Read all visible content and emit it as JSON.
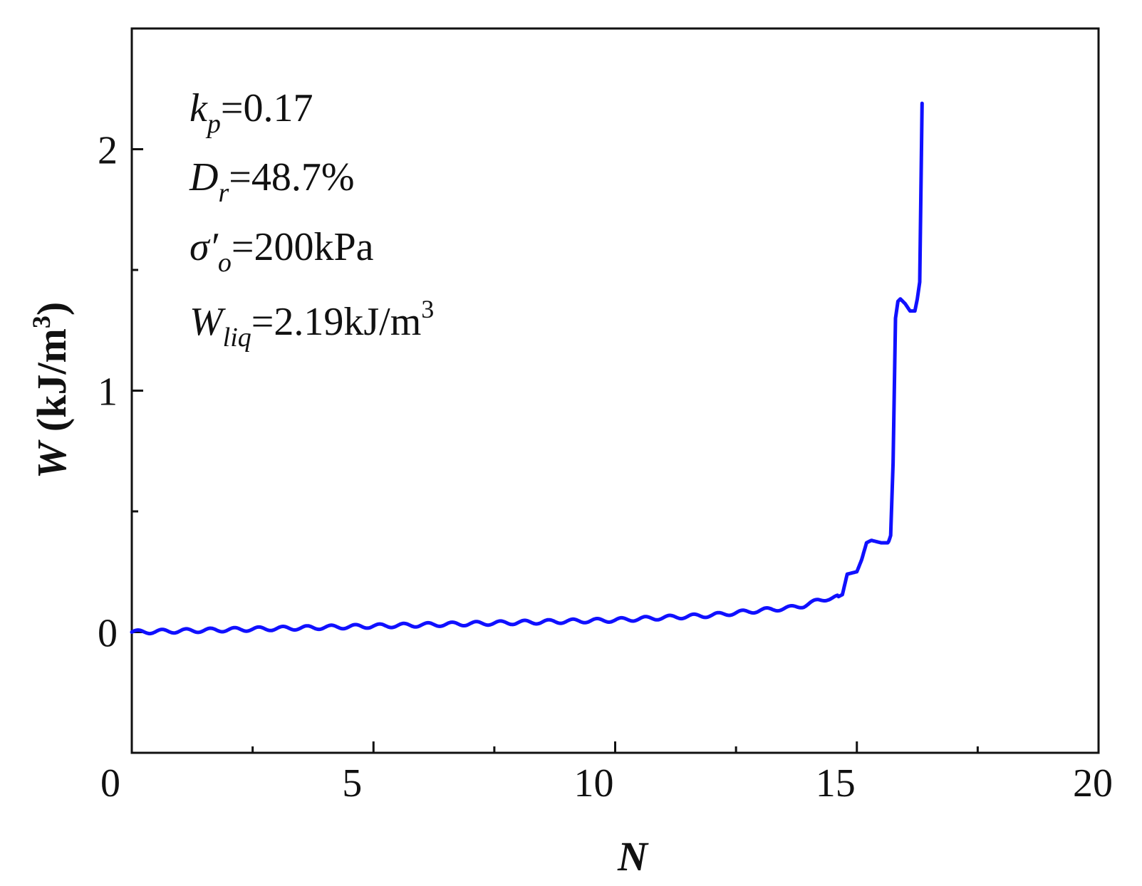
{
  "chart_data": {
    "type": "line",
    "xlabel": "N",
    "ylabel_var": "W",
    "ylabel_unit": " (kJ/m",
    "ylabel_sup": "3",
    "ylabel_close": ")",
    "xlim": [
      0,
      20
    ],
    "ylim": [
      -0.5,
      2.5
    ],
    "x_ticks": [
      0,
      5,
      10,
      15,
      20
    ],
    "x_tick_labels": [
      "0",
      "5",
      "10",
      "15",
      "20"
    ],
    "x_minor_ticks": [
      2.5,
      7.5,
      12.5,
      17.5
    ],
    "y_ticks": [
      0,
      1,
      2
    ],
    "y_tick_labels": [
      "0",
      "1",
      "2"
    ],
    "y_minor_ticks": [
      -0.5,
      0.5,
      1.5,
      2.5
    ],
    "grid": false,
    "line_color": "#1010ff",
    "annotations": [
      {
        "var": "k",
        "sub": "p",
        "text": "=0.17"
      },
      {
        "var": "D",
        "sub": "r",
        "text": "=48.7%"
      },
      {
        "var": "σ′",
        "sub": "o",
        "text": "=200kPa"
      },
      {
        "var": "W",
        "sub": "liq",
        "text": "=2.19kJ/m",
        "sup": "3"
      }
    ],
    "series": [
      {
        "x": [
          0,
          1,
          2,
          3,
          4,
          5,
          6,
          7,
          8,
          9,
          10,
          10.5,
          11,
          11.5,
          12,
          12.5,
          13,
          13.3,
          13.6,
          13.9,
          14.2,
          14.4,
          14.6,
          14.7,
          14.8,
          15.0,
          15.1,
          15.2,
          15.3,
          15.5,
          15.65,
          15.7,
          15.75,
          15.8,
          15.85,
          15.9,
          16.0,
          16.1,
          16.2,
          16.25,
          16.3,
          16.35
        ],
        "y": [
          0.0,
          0.005,
          0.01,
          0.015,
          0.02,
          0.025,
          0.03,
          0.035,
          0.04,
          0.045,
          0.05,
          0.055,
          0.06,
          0.065,
          0.07,
          0.08,
          0.09,
          0.095,
          0.1,
          0.11,
          0.13,
          0.14,
          0.145,
          0.155,
          0.24,
          0.25,
          0.3,
          0.37,
          0.38,
          0.37,
          0.37,
          0.4,
          0.7,
          1.3,
          1.37,
          1.38,
          1.36,
          1.33,
          1.33,
          1.38,
          1.45,
          2.19
        ]
      }
    ]
  }
}
